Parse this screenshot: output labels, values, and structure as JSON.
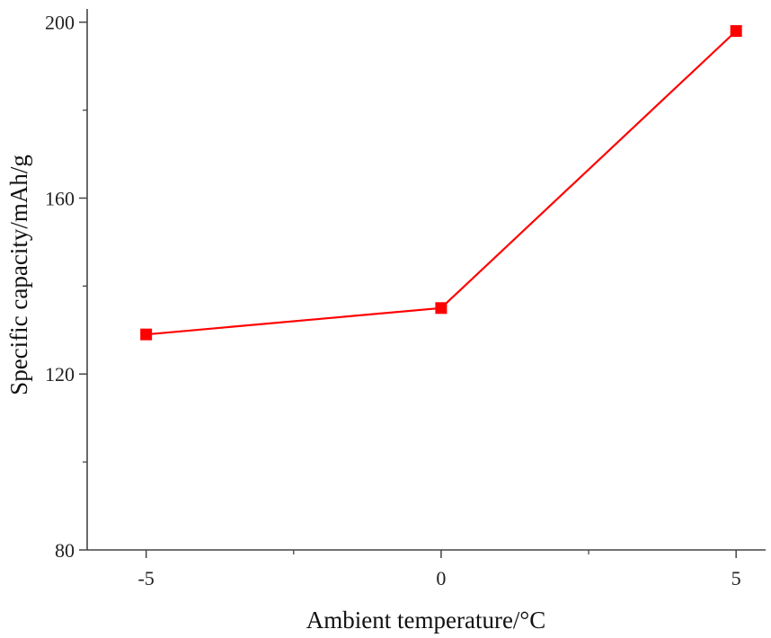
{
  "chart_data": {
    "type": "line",
    "title": "",
    "xlabel": "Ambient temperature/°C",
    "ylabel": "Specific capacity/mAh/g",
    "x": [
      -5,
      0,
      5
    ],
    "series": [
      {
        "values": [
          129,
          135,
          198
        ],
        "color": "#ff0000",
        "marker": "square"
      }
    ],
    "xlim": [
      -6,
      5.5
    ],
    "ylim": [
      80,
      203
    ],
    "xticks": [
      -5,
      0,
      5
    ],
    "xtick_labels": [
      "-5",
      "0",
      "5"
    ],
    "xminor_ticks": [
      -2.5,
      2.5
    ],
    "yticks": [
      80,
      120,
      160,
      200
    ],
    "ytick_labels": [
      "80",
      "120",
      "160",
      "200"
    ],
    "yminor_ticks": [
      100,
      140,
      180
    ],
    "grid": false,
    "legend": "none",
    "frame": "open-box",
    "axis_color": "#444444"
  }
}
